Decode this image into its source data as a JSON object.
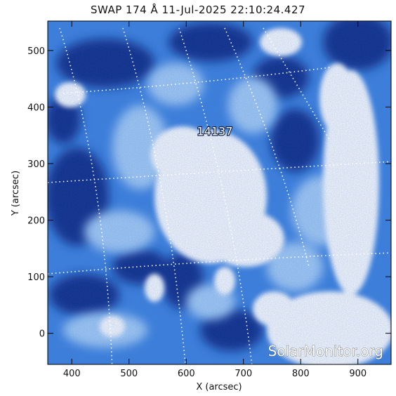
{
  "title": "SWAP 174 Å 11-Jul-2025 22:10:24.427",
  "x_axis": {
    "label": "X (arcsec)",
    "range": [
      358,
      958
    ],
    "ticks": [
      400,
      500,
      600,
      700,
      800,
      900
    ]
  },
  "y_axis": {
    "label": "Y (arcsec)",
    "range": [
      -55,
      552
    ],
    "ticks": [
      0,
      100,
      200,
      300,
      400,
      500
    ]
  },
  "active_region": {
    "label": "14137",
    "x": 650,
    "y": 350
  },
  "watermark": "SolarMonitor.org",
  "colors": {
    "dark": "#0c2a86",
    "mid": "#3c82e0",
    "light": "#a6cdf6",
    "saturated": "#ffffff",
    "grid": "#ffffff"
  }
}
